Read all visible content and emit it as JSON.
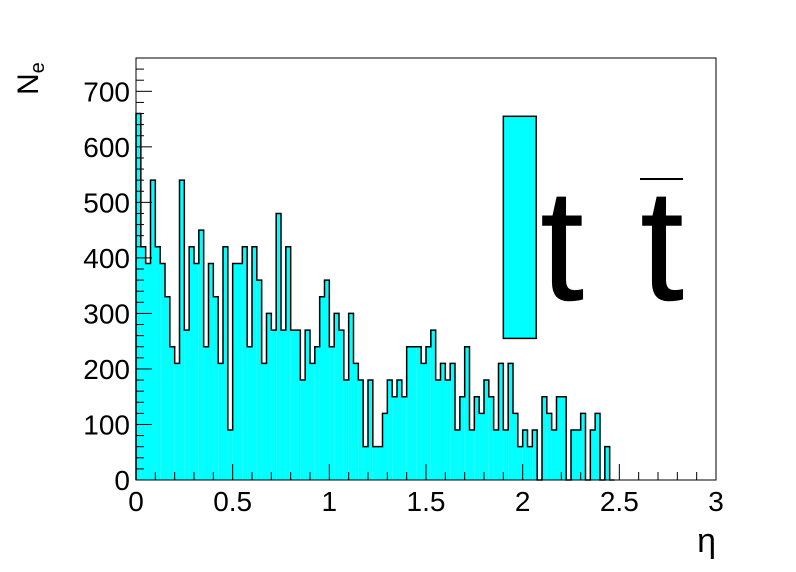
{
  "chart_data": {
    "type": "bar",
    "title": "",
    "xlabel": "η",
    "ylabel": "N",
    "ylabel_subscript": "e",
    "xlim": [
      0,
      3
    ],
    "ylim": [
      0,
      760
    ],
    "x_ticks": [
      0,
      0.5,
      1,
      1.5,
      2,
      2.5,
      3
    ],
    "x_tick_labels": [
      "0",
      "0.5",
      "1",
      "1.5",
      "2",
      "2.5",
      "3"
    ],
    "y_ticks": [
      0,
      100,
      200,
      300,
      400,
      500,
      600,
      700
    ],
    "y_tick_labels": [
      "0",
      "100",
      "200",
      "300",
      "400",
      "500",
      "600",
      "700"
    ],
    "grid": false,
    "legend_box": {
      "label_main": "t",
      "label_bar": "t",
      "y_low": 255,
      "y_high": 655,
      "x_low": 1.9,
      "x_high": 2.07
    },
    "bin_width": 0.025,
    "values": [
      660,
      420,
      390,
      540,
      420,
      390,
      330,
      240,
      210,
      540,
      270,
      420,
      390,
      450,
      240,
      390,
      330,
      210,
      420,
      90,
      390,
      390,
      420,
      240,
      420,
      360,
      210,
      300,
      270,
      480,
      270,
      420,
      270,
      270,
      180,
      270,
      210,
      240,
      330,
      360,
      240,
      300,
      270,
      180,
      300,
      210,
      180,
      60,
      180,
      60,
      60,
      120,
      180,
      150,
      180,
      150,
      240,
      240,
      240,
      210,
      240,
      270,
      180,
      210,
      180,
      210,
      90,
      150,
      240,
      90,
      150,
      120,
      180,
      150,
      90,
      210,
      90,
      210,
      120,
      60,
      90,
      60,
      90,
      0,
      150,
      120,
      90,
      150,
      150,
      0,
      90,
      90,
      120,
      0,
      90,
      120,
      0,
      60,
      0
    ]
  },
  "colors": {
    "fill": "#00ffff",
    "line": "#000000",
    "background": "#ffffff"
  }
}
